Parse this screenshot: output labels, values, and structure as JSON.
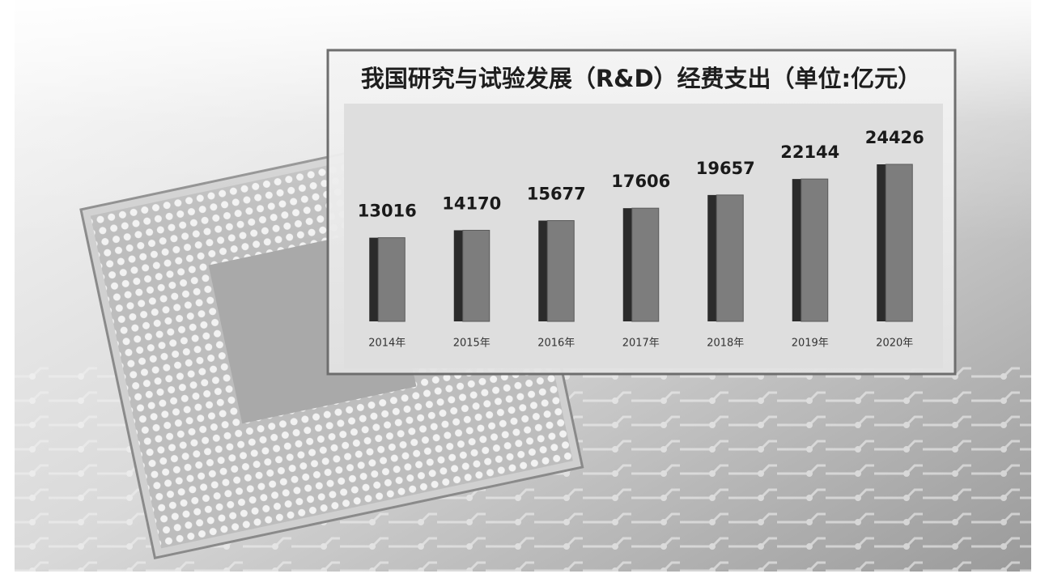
{
  "chart_data": {
    "type": "bar",
    "title": "我国研究与试验发展（R&D）经费支出（单位:亿元）",
    "categories": [
      "2014年",
      "2015年",
      "2016年",
      "2017年",
      "2018年",
      "2019年",
      "2020年"
    ],
    "values": [
      13016,
      14170,
      15677,
      17606,
      19657,
      22144,
      24426
    ],
    "color": "#7d7d7d"
  }
}
